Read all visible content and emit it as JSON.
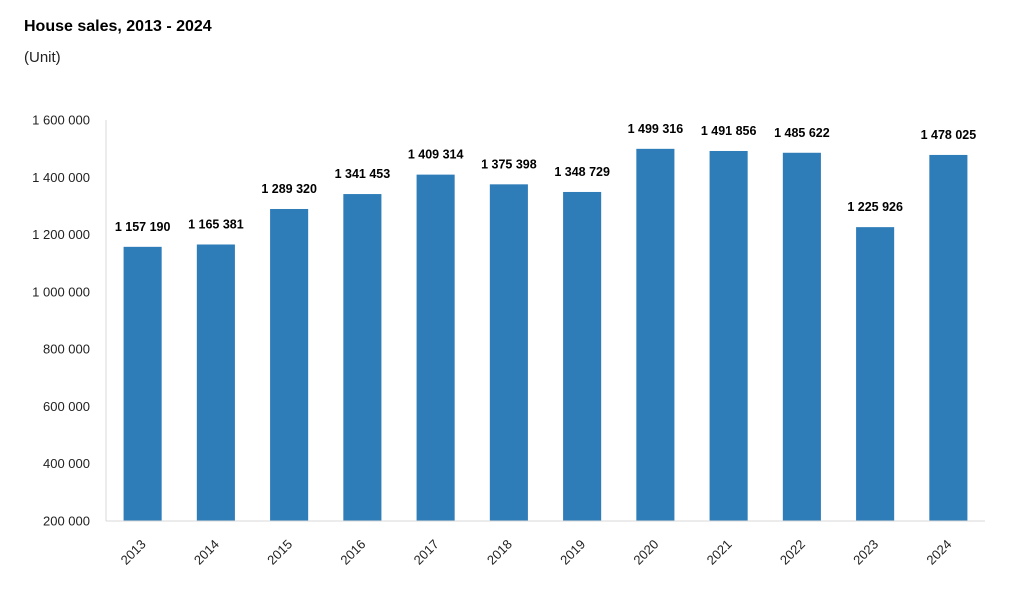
{
  "chart_data": {
    "type": "bar",
    "title": "House sales, 2013 - 2024",
    "subtitle": "(Unit)",
    "xlabel": "",
    "ylabel": "",
    "categories": [
      "2013",
      "2014",
      "2015",
      "2016",
      "2017",
      "2018",
      "2019",
      "2020",
      "2021",
      "2022",
      "2023",
      "2024"
    ],
    "values": [
      1157190,
      1165381,
      1289320,
      1341453,
      1409314,
      1375398,
      1348729,
      1499316,
      1491856,
      1485622,
      1225926,
      1478025
    ],
    "data_labels": [
      "1 157 190",
      "1 165 381",
      "1 289 320",
      "1 341 453",
      "1 409 314",
      "1 375 398",
      "1 348 729",
      "1 499 316",
      "1 491 856",
      "1 485 622",
      "1 225 926",
      "1 478 025"
    ],
    "ylim": [
      200000,
      1600000
    ],
    "yticks": [
      200000,
      400000,
      600000,
      800000,
      1000000,
      1200000,
      1400000,
      1600000
    ],
    "ytick_labels": [
      "200 000",
      "400 000",
      "600 000",
      "800 000",
      "1 000 000",
      "1 200 000",
      "1 400 000",
      "1 600 000"
    ],
    "grid": false,
    "legend": "none",
    "bar_color": "#2f7db8",
    "axis_color": "#d9d9d9"
  }
}
